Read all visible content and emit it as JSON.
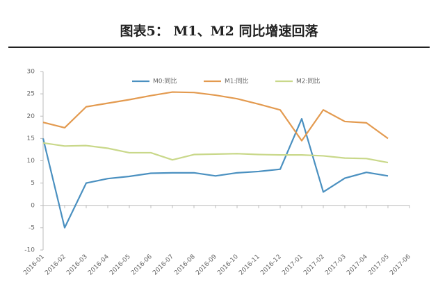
{
  "chart_data": {
    "type": "line",
    "title": "图表5： M1、M2 同比增速回落",
    "categories": [
      "2016-01",
      "2016-02",
      "2016-03",
      "2016-04",
      "2016-05",
      "2016-06",
      "2016-07",
      "2016-08",
      "2016-09",
      "2016-10",
      "2016-11",
      "2016-12",
      "2017-01",
      "2017-02",
      "2017-03",
      "2017-04",
      "2017-05",
      "2017-06"
    ],
    "series": [
      {
        "name": "M0:同比",
        "color": "#4a90c0",
        "values": [
          15.0,
          -5.0,
          5.0,
          6.0,
          6.5,
          7.2,
          7.3,
          7.3,
          6.6,
          7.3,
          7.6,
          8.1,
          19.4,
          3.0,
          6.1,
          7.4,
          6.6,
          null
        ]
      },
      {
        "name": "M1:同比",
        "color": "#e39a4f",
        "values": [
          18.6,
          17.4,
          22.1,
          22.9,
          23.7,
          24.6,
          25.4,
          25.3,
          24.7,
          23.9,
          22.7,
          21.4,
          14.5,
          21.4,
          18.8,
          18.5,
          15.0,
          null
        ]
      },
      {
        "name": "M2:同比",
        "color": "#c9d88a",
        "values": [
          14.0,
          13.3,
          13.4,
          12.8,
          11.8,
          11.8,
          10.2,
          11.4,
          11.5,
          11.6,
          11.4,
          11.3,
          11.3,
          11.1,
          10.6,
          10.5,
          9.6,
          null
        ]
      }
    ],
    "ylim": [
      -10,
      30
    ],
    "yticks": [
      -10,
      -5,
      0,
      5,
      10,
      15,
      20,
      25,
      30
    ],
    "grid": false
  }
}
